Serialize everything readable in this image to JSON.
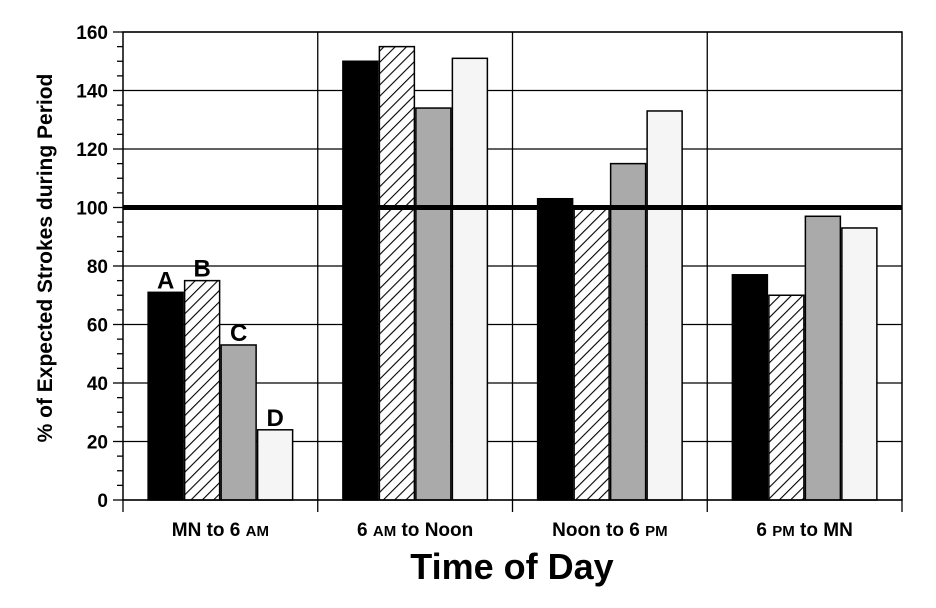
{
  "chart_data": {
    "type": "bar",
    "xlabel": "Time of Day",
    "ylabel": "% of Expected Strokes during Period",
    "ylim": [
      0,
      160
    ],
    "yticks": [
      "0",
      "20",
      "40",
      "60",
      "80",
      "100",
      "120",
      "140",
      "160"
    ],
    "reference_line": 100,
    "grid": true,
    "categories": [
      {
        "parts": [
          "MN to 6 ",
          "AM"
        ]
      },
      {
        "parts": [
          "6 ",
          "AM",
          " to Noon"
        ]
      },
      {
        "parts": [
          "Noon to 6 ",
          "PM"
        ]
      },
      {
        "parts": [
          "6 ",
          "PM",
          " to MN"
        ]
      }
    ],
    "series": [
      {
        "label": "A",
        "fill": "black",
        "values": [
          71,
          150,
          103,
          77
        ]
      },
      {
        "label": "B",
        "fill": "hatch",
        "values": [
          75,
          155,
          100,
          70
        ]
      },
      {
        "label": "C",
        "fill": "gray",
        "values": [
          53,
          134,
          115,
          97
        ]
      },
      {
        "label": "D",
        "fill": "light",
        "values": [
          24,
          151,
          133,
          93
        ]
      }
    ]
  }
}
